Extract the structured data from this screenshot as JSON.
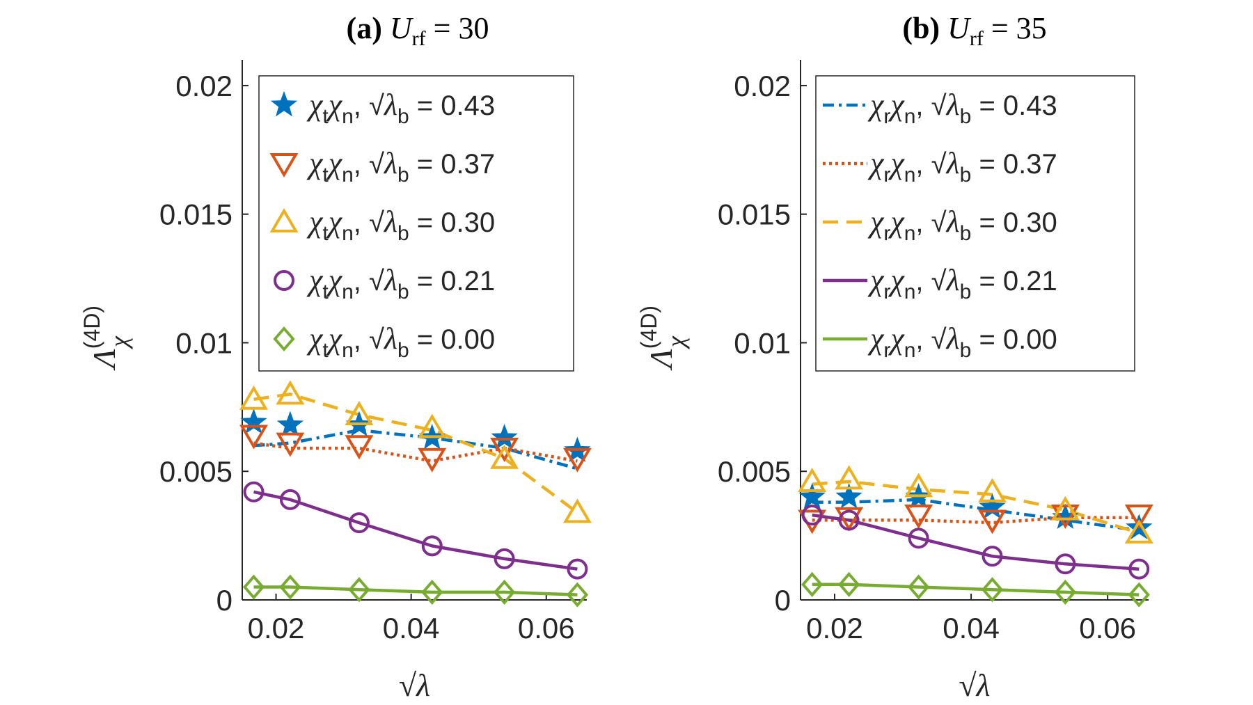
{
  "chart_data": [
    {
      "type": "line",
      "panel": "a",
      "title": {
        "prefix": "(a)",
        "var": "U",
        "sub": "rf",
        "rest": " = 30"
      },
      "ylabel": {
        "main": "Λ",
        "sup": "(4D)",
        "sub": "χ"
      },
      "xlabel": "√λ",
      "xlim": [
        0.015,
        0.066
      ],
      "ylim": [
        0,
        0.021
      ],
      "xticks": [
        0.02,
        0.04,
        0.06
      ],
      "xtick_labels": [
        "0.02",
        "0.04",
        "0.06"
      ],
      "yticks": [
        0,
        0.005,
        0.01,
        0.015,
        0.02
      ],
      "ytick_labels": [
        "0",
        "0.005",
        "0.01",
        "0.015",
        "0.02"
      ],
      "legend_position": "top-right",
      "legend_var": {
        "a": "χ",
        "a_sub": "t",
        "b": "χ",
        "b_sub": "n",
        "c": "λ",
        "c_sub": "b",
        "root": "√"
      },
      "x": [
        0.0167,
        0.0221,
        0.0323,
        0.0431,
        0.0538,
        0.0646
      ],
      "series": [
        {
          "name": "= 0.43",
          "color": "#0072BD",
          "dash": "16 7 4 7",
          "marker": "star",
          "y": [
            0.006,
            0.0061,
            0.0066,
            0.0063,
            0.0059,
            0.0051
          ],
          "marker_y": [
            0.0069,
            0.0068,
            0.0068,
            0.0063,
            0.0063,
            0.0058
          ]
        },
        {
          "name": "= 0.37",
          "color": "#D95319",
          "dash": "4 5",
          "marker": "triangle-down",
          "y": [
            0.0061,
            0.0059,
            0.0059,
            0.0054,
            0.0059,
            0.0054
          ],
          "marker_y": [
            0.0064,
            0.0061,
            0.006,
            0.0055,
            0.0059,
            0.0055
          ]
        },
        {
          "name": "= 0.30",
          "color": "#EDB120",
          "dash": "22 12",
          "marker": "triangle-up",
          "y": [
            0.0078,
            0.008,
            0.0072,
            0.0066,
            0.0055,
            0.0034
          ],
          "marker_y": [
            0.0078,
            0.008,
            0.0072,
            0.0067,
            0.0055,
            0.0034
          ]
        },
        {
          "name": "= 0.21",
          "color": "#7E2F8E",
          "dash": "",
          "marker": "circle",
          "y": [
            0.0042,
            0.0039,
            0.003,
            0.0021,
            0.0016,
            0.0012
          ],
          "marker_y": [
            0.0042,
            0.0039,
            0.003,
            0.0021,
            0.0016,
            0.0012
          ]
        },
        {
          "name": "= 0.00",
          "color": "#77AC30",
          "dash": "",
          "marker": "diamond",
          "y": [
            0.0005,
            0.0005,
            0.0004,
            0.0003,
            0.0003,
            0.0002
          ],
          "marker_y": [
            0.0005,
            0.0005,
            0.0004,
            0.0003,
            0.0003,
            0.0002
          ]
        }
      ]
    },
    {
      "type": "line",
      "panel": "b",
      "title": {
        "prefix": "(b)",
        "var": "U",
        "sub": "rf",
        "rest": " = 35"
      },
      "ylabel": {
        "main": "Λ",
        "sup": "(4D)",
        "sub": "χ"
      },
      "xlabel": "√λ",
      "xlim": [
        0.015,
        0.066
      ],
      "ylim": [
        0,
        0.021
      ],
      "xticks": [
        0.02,
        0.04,
        0.06
      ],
      "xtick_labels": [
        "0.02",
        "0.04",
        "0.06"
      ],
      "yticks": [
        0,
        0.005,
        0.01,
        0.015,
        0.02
      ],
      "ytick_labels": [
        "0",
        "0.005",
        "0.01",
        "0.015",
        "0.02"
      ],
      "legend_position": "top-right",
      "legend_var": {
        "a": "χ",
        "a_sub": "r",
        "b": "χ",
        "b_sub": "n",
        "c": "λ",
        "c_sub": "b",
        "root": "√"
      },
      "x": [
        0.0167,
        0.0221,
        0.0323,
        0.0431,
        0.0538,
        0.0646
      ],
      "series": [
        {
          "name": "= 0.43",
          "color": "#0072BD",
          "dash": "16 7 4 7",
          "marker": "star",
          "y": [
            0.0038,
            0.0038,
            0.0039,
            0.0035,
            0.0031,
            0.0027
          ],
          "marker_y": [
            0.004,
            0.004,
            0.004,
            0.0036,
            0.0032,
            0.0028
          ]
        },
        {
          "name": "= 0.37",
          "color": "#D95319",
          "dash": "4 5",
          "marker": "triangle-down",
          "y": [
            0.0031,
            0.0031,
            0.0031,
            0.003,
            0.0032,
            0.0032
          ],
          "marker_y": [
            0.0031,
            0.0032,
            0.0033,
            0.0031,
            0.0033,
            0.0033
          ]
        },
        {
          "name": "= 0.30",
          "color": "#EDB120",
          "dash": "22 12",
          "marker": "triangle-up",
          "y": [
            0.0045,
            0.0046,
            0.0043,
            0.0041,
            0.0035,
            0.0026
          ],
          "marker_y": [
            0.0046,
            0.0047,
            0.0044,
            0.0042,
            0.0035,
            0.0026
          ]
        },
        {
          "name": "= 0.21",
          "color": "#7E2F8E",
          "dash": "",
          "marker": "circle",
          "y": [
            0.0033,
            0.0031,
            0.0024,
            0.0017,
            0.0014,
            0.0012
          ],
          "marker_y": [
            0.0033,
            0.0031,
            0.0024,
            0.0017,
            0.0014,
            0.0012
          ]
        },
        {
          "name": "= 0.00",
          "color": "#77AC30",
          "dash": "",
          "marker": "diamond",
          "y": [
            0.0006,
            0.0006,
            0.0005,
            0.0004,
            0.0003,
            0.0002
          ],
          "marker_y": [
            0.0006,
            0.0006,
            0.0005,
            0.0004,
            0.0003,
            0.0002
          ]
        }
      ]
    }
  ]
}
